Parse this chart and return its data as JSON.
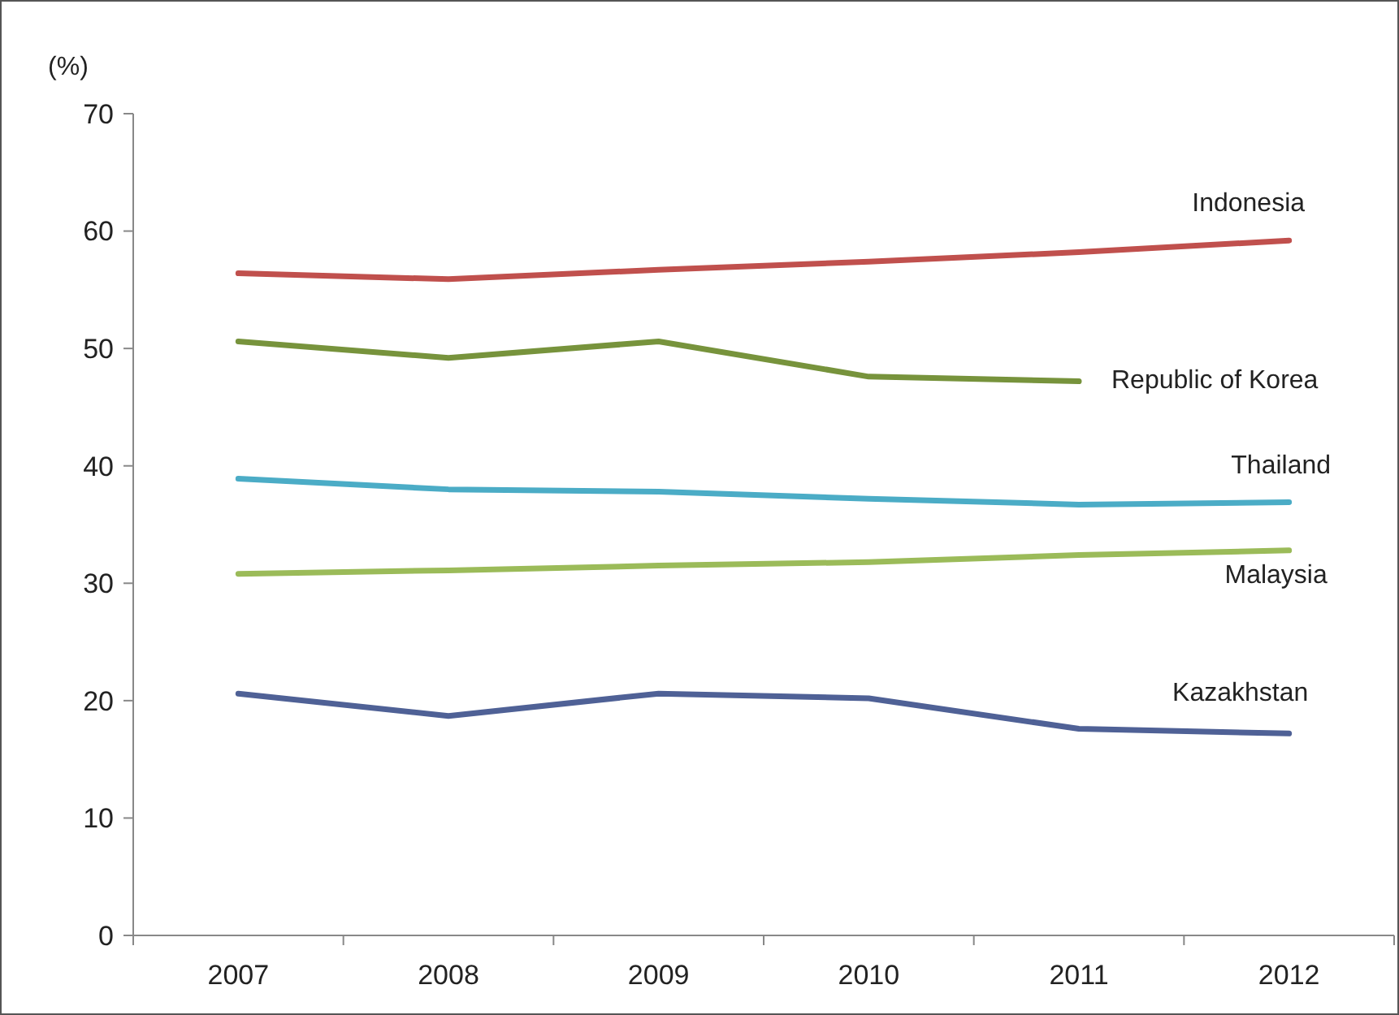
{
  "chart_data": {
    "type": "line",
    "ylabel": "(%)",
    "categories": [
      "2007",
      "2008",
      "2009",
      "2010",
      "2011",
      "2012"
    ],
    "ylim": [
      0,
      70
    ],
    "yticks": [
      0,
      10,
      20,
      30,
      40,
      50,
      60,
      70
    ],
    "grid": false,
    "legend": false,
    "marker": "none",
    "line_style": "solid",
    "series": [
      {
        "name": "Indonesia",
        "color": "#c0504d",
        "values": [
          56.4,
          55.9,
          56.7,
          57.4,
          58.2,
          59.2
        ]
      },
      {
        "name": "Republic of Korea",
        "color": "#77933c",
        "values": [
          50.6,
          49.2,
          50.6,
          47.6,
          47.2,
          null
        ]
      },
      {
        "name": "Thailand",
        "color": "#4bacc6",
        "values": [
          38.9,
          38.0,
          37.8,
          37.2,
          36.7,
          36.9
        ]
      },
      {
        "name": "Malaysia",
        "color": "#9bbb59",
        "values": [
          30.8,
          31.1,
          31.5,
          31.8,
          32.4,
          32.8
        ]
      },
      {
        "name": "Kazakhstan",
        "color": "#4f6196",
        "values": [
          20.6,
          18.7,
          20.6,
          20.2,
          17.6,
          17.2
        ]
      }
    ]
  }
}
